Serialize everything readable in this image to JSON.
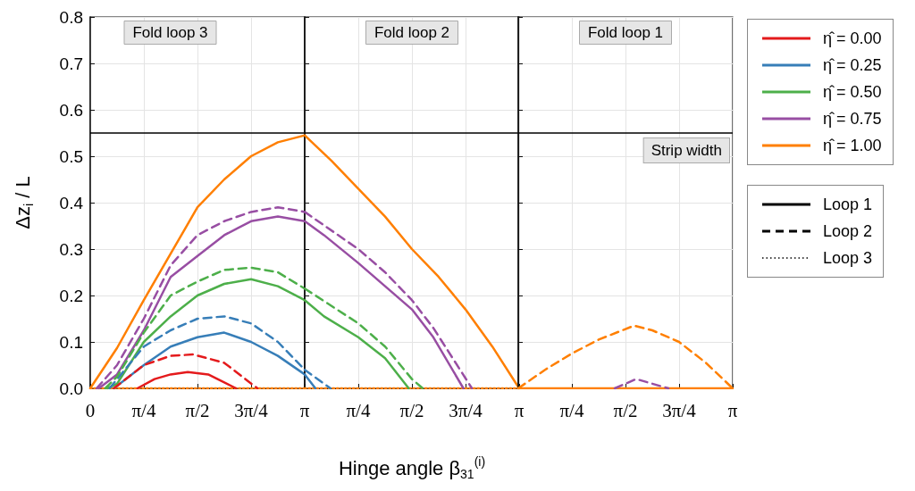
{
  "chart_data": [
    {
      "type": "line",
      "title": "Fold loop 3",
      "ylabel": "Δz$_{i}$ / L",
      "xlim": [
        0,
        3.142
      ],
      "xticks": [
        {
          "value": 0,
          "label": "0"
        },
        {
          "value": 0.785,
          "label": "π/4"
        },
        {
          "value": 1.571,
          "label": "π/2"
        },
        {
          "value": 2.356,
          "label": "3π/4"
        },
        {
          "value": 3.142,
          "label": "π"
        }
      ],
      "ylim": [
        0,
        0.8
      ],
      "yticks": [
        {
          "value": 0,
          "label": "0.0"
        },
        0.1,
        0.2,
        0.3,
        0.4,
        0.5,
        0.6,
        0.7,
        0.8
      ],
      "grid": true,
      "legend": "right",
      "marker": "none",
      "series": [
        {
          "color": "#ff7f00",
          "line_style": "dotted",
          "x": [
            0,
            3.142
          ],
          "values": [
            0,
            0
          ]
        },
        {
          "name": "η̂ = 0.00",
          "color": "#e41a1c",
          "line_style": "solid",
          "x": [
            0.691,
            0.942,
            1.178,
            1.429,
            1.728,
            2.136
          ],
          "values": [
            0,
            0.02,
            0.03,
            0.035,
            0.03,
            0
          ]
        },
        {
          "name": "η̂ = 0.25",
          "color": "#377eb8",
          "line_style": "solid",
          "x": [
            0.346,
            0.785,
            1.178,
            1.571,
            1.963,
            2.356,
            2.749,
            3.142
          ],
          "values": [
            0,
            0.05,
            0.09,
            0.11,
            0.12,
            0.1,
            0.07,
            0.03
          ]
        },
        {
          "name": "η̂ = 0.50",
          "color": "#4daf4a",
          "line_style": "solid",
          "x": [
            0.251,
            0.393,
            0.785,
            1.178,
            1.571,
            1.963,
            2.356,
            2.749,
            3.142
          ],
          "values": [
            0,
            0.01,
            0.1,
            0.155,
            0.2,
            0.225,
            0.235,
            0.22,
            0.19
          ]
        },
        {
          "name": "η̂ = 0.75",
          "color": "#984ea3",
          "line_style": "solid",
          "x": [
            0.126,
            0.393,
            0.785,
            1.178,
            1.571,
            1.963,
            2.356,
            2.749,
            3.142
          ],
          "values": [
            0,
            0.03,
            0.125,
            0.24,
            0.285,
            0.33,
            0.36,
            0.37,
            0.36
          ]
        },
        {
          "name": "η̂ = 1.00",
          "color": "#ff7f00",
          "line_style": "solid",
          "x": [
            0,
            0.393,
            0.785,
            1.178,
            1.571,
            1.963,
            2.356,
            2.749,
            3.142
          ],
          "values": [
            0,
            0.087,
            0.19,
            0.29,
            0.39,
            0.45,
            0.5,
            0.53,
            0.545
          ]
        },
        {
          "color": "#e41a1c",
          "line_style": "dashed",
          "x": [
            0.346,
            0.785,
            1.178,
            1.508,
            1.963,
            2.45
          ],
          "values": [
            0,
            0.05,
            0.07,
            0.073,
            0.055,
            0
          ]
        },
        {
          "color": "#377eb8",
          "line_style": "dashed",
          "x": [
            0.283,
            0.785,
            1.178,
            1.571,
            1.963,
            2.356,
            2.749,
            3.142
          ],
          "values": [
            0,
            0.09,
            0.125,
            0.15,
            0.155,
            0.14,
            0.1,
            0.04
          ]
        },
        {
          "color": "#4daf4a",
          "line_style": "dashed",
          "x": [
            0.22,
            0.393,
            0.785,
            1.178,
            1.571,
            1.963,
            2.356,
            2.749,
            3.142
          ],
          "values": [
            0,
            0.025,
            0.12,
            0.2,
            0.23,
            0.255,
            0.26,
            0.25,
            0.215
          ]
        },
        {
          "color": "#984ea3",
          "line_style": "dashed",
          "x": [
            0.094,
            0.393,
            0.785,
            1.178,
            1.571,
            1.963,
            2.356,
            2.749,
            3.142
          ],
          "values": [
            0,
            0.05,
            0.15,
            0.265,
            0.33,
            0.36,
            0.38,
            0.39,
            0.38
          ]
        },
        {
          "name": "Loop 1",
          "color": "#000000",
          "line_style": "solid",
          "values": [
            null
          ]
        },
        {
          "name": "Loop 2",
          "color": "#000000",
          "line_style": "dashed",
          "values": [
            null
          ]
        },
        {
          "name": "Loop 3",
          "color": "#000000",
          "line_style": "dotted",
          "values": [
            null
          ]
        }
      ],
      "ref_lines": [
        {
          "axis": "y",
          "value": 0.55,
          "color": "#000000"
        }
      ]
    },
    {
      "type": "line",
      "title": "Fold loop 2",
      "xlabel": "Hinge angle β$_{31}$$^{(i)}$",
      "xlim": [
        0,
        3.142
      ],
      "xticks": [
        {
          "value": 0.785,
          "label": "π/4"
        },
        {
          "value": 1.571,
          "label": "π/2"
        },
        {
          "value": 2.356,
          "label": "3π/4"
        },
        {
          "value": 3.142,
          "label": "π"
        }
      ],
      "ylim": [
        0,
        0.8
      ],
      "yticks": [
        {
          "value": 0,
          "label": null
        },
        {
          "value": 0.1,
          "label": null
        },
        {
          "value": 0.2,
          "label": null
        },
        {
          "value": 0.3,
          "label": null
        },
        {
          "value": 0.4,
          "label": null
        },
        {
          "value": 0.5,
          "label": null
        },
        {
          "value": 0.6,
          "label": null
        },
        {
          "value": 0.7,
          "label": null
        },
        {
          "value": 0.8,
          "label": null
        }
      ],
      "grid": true,
      "marker": "none",
      "tick_labels": "x",
      "series": [
        {
          "color": "#ff7f00",
          "line_style": "dotted",
          "x": [
            0,
            3.142
          ],
          "values": [
            0,
            0
          ]
        },
        {
          "color": "#377eb8",
          "line_style": "solid",
          "x": [
            0,
            0.157
          ],
          "values": [
            0.03,
            0
          ]
        },
        {
          "color": "#4daf4a",
          "line_style": "solid",
          "x": [
            0,
            0.283,
            0.785,
            1.178,
            1.524
          ],
          "values": [
            0.19,
            0.155,
            0.11,
            0.065,
            0
          ]
        },
        {
          "color": "#984ea3",
          "line_style": "solid",
          "x": [
            0,
            0.283,
            0.785,
            1.178,
            1.571,
            1.885,
            2.325
          ],
          "values": [
            0.36,
            0.33,
            0.27,
            0.22,
            0.17,
            0.11,
            0
          ]
        },
        {
          "color": "#ff7f00",
          "line_style": "solid",
          "x": [
            0,
            0.393,
            0.785,
            1.178,
            1.571,
            1.963,
            2.356,
            2.749,
            3.142
          ],
          "values": [
            0.545,
            0.49,
            0.43,
            0.37,
            0.3,
            0.24,
            0.17,
            0.09,
            0
          ]
        },
        {
          "color": "#377eb8",
          "line_style": "dashed",
          "x": [
            0,
            0.377
          ],
          "values": [
            0.04,
            0
          ]
        },
        {
          "color": "#4daf4a",
          "line_style": "dashed",
          "x": [
            0,
            0.785,
            1.178,
            1.571,
            1.728
          ],
          "values": [
            0.215,
            0.14,
            0.09,
            0.02,
            0
          ]
        },
        {
          "color": "#984ea3",
          "line_style": "dashed",
          "x": [
            0,
            0.785,
            1.178,
            1.571,
            1.885,
            2.45
          ],
          "values": [
            0.38,
            0.3,
            0.25,
            0.19,
            0.13,
            0
          ]
        }
      ],
      "ref_lines": [
        {
          "axis": "y",
          "value": 0.55,
          "color": "#000000"
        }
      ]
    },
    {
      "type": "line",
      "title": "Fold loop 1",
      "xlim": [
        0,
        3.142
      ],
      "xticks": [
        {
          "value": 0.785,
          "label": "π/4"
        },
        {
          "value": 1.571,
          "label": "π/2"
        },
        {
          "value": 2.356,
          "label": "3π/4"
        },
        {
          "value": 3.142,
          "label": "π"
        }
      ],
      "ylim": [
        0,
        0.8
      ],
      "yticks": [
        {
          "value": 0,
          "label": null
        },
        {
          "value": 0.1,
          "label": null
        },
        {
          "value": 0.2,
          "label": null
        },
        {
          "value": 0.3,
          "label": null
        },
        {
          "value": 0.4,
          "label": null
        },
        {
          "value": 0.5,
          "label": null
        },
        {
          "value": 0.6,
          "label": null
        },
        {
          "value": 0.7,
          "label": null
        },
        {
          "value": 0.8,
          "label": null
        }
      ],
      "grid": true,
      "marker": "none",
      "tick_labels": "x",
      "series": [
        {
          "color": "#ff7f00",
          "line_style": "solid",
          "x": [
            0,
            3.142
          ],
          "values": [
            0,
            0
          ]
        },
        {
          "color": "#984ea3",
          "line_style": "dashed",
          "x": [
            1.414,
            1.728,
            2.199
          ],
          "values": [
            0,
            0.02,
            0
          ]
        },
        {
          "color": "#ff7f00",
          "line_style": "dashed",
          "x": [
            0,
            0.393,
            0.785,
            1.178,
            1.696,
            1.963,
            2.356,
            2.749,
            3.142
          ],
          "values": [
            0,
            0.04,
            0.075,
            0.105,
            0.135,
            0.125,
            0.1,
            0.055,
            0
          ]
        }
      ],
      "ref_lines": [
        {
          "axis": "y",
          "value": 0.55,
          "label": "Strip width",
          "color": "#000000"
        }
      ]
    }
  ]
}
